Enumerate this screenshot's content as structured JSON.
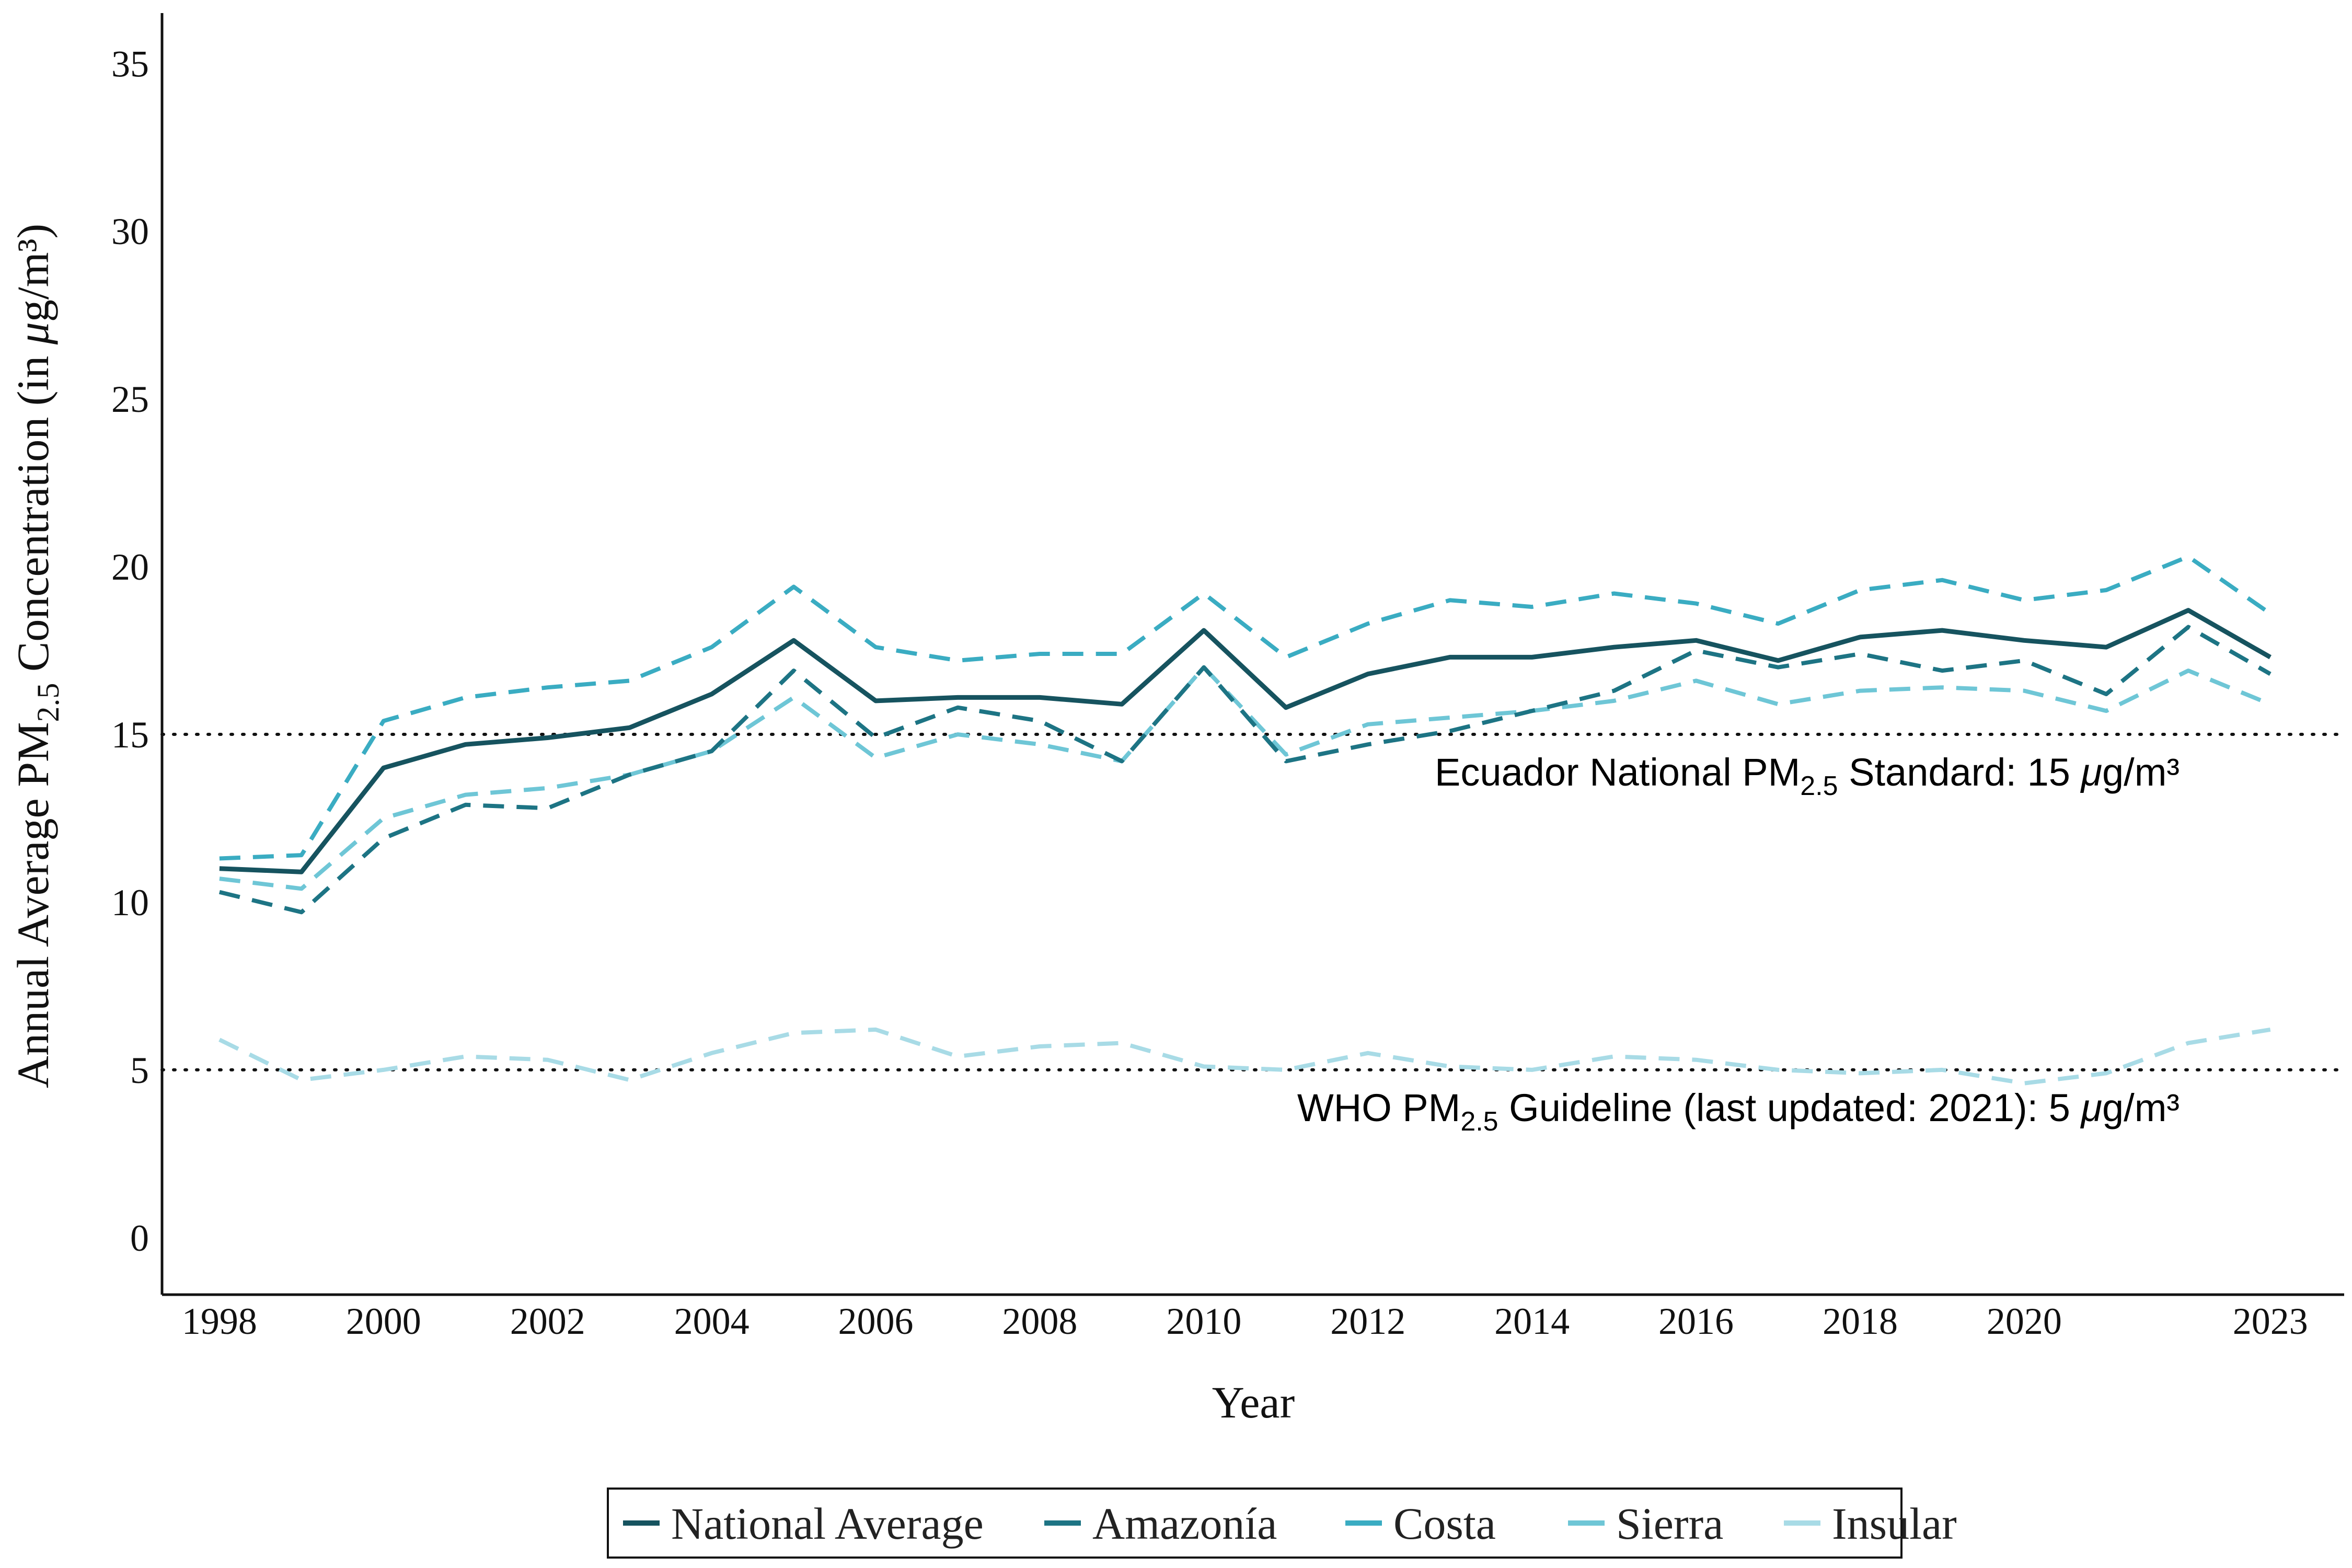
{
  "chart_data": {
    "type": "line",
    "xlabel": "Year",
    "ylabel": "Annual Average PM",
    "ylabel_sub": "2.5",
    "ylabel_tail": " Concentration (in ",
    "ylabel_mu": "μ",
    "ylabel_unit": "g/m³)",
    "x_ticks": [
      1998,
      2000,
      2002,
      2004,
      2006,
      2008,
      2010,
      2012,
      2014,
      2016,
      2018,
      2020,
      2023
    ],
    "x_tick_labels": [
      "1998",
      "2000",
      "2002",
      "2004",
      "2006",
      "2008",
      "2010",
      "2012",
      "2014",
      "2016",
      "2018",
      "2020",
      "2023"
    ],
    "y_ticks": [
      0,
      5,
      10,
      15,
      20,
      25,
      30,
      35
    ],
    "y_tick_labels": [
      "0",
      "5",
      "10",
      "15",
      "20",
      "25",
      "30",
      "35"
    ],
    "xlim": [
      1997.3,
      2023.9
    ],
    "ylim": [
      -1.7,
      36.5
    ],
    "grid": false,
    "legend_position": "bottom",
    "x": [
      1998,
      1999,
      2000,
      2001,
      2002,
      2003,
      2004,
      2005,
      2006,
      2007,
      2008,
      2009,
      2010,
      2011,
      2012,
      2013,
      2014,
      2015,
      2016,
      2017,
      2018,
      2019,
      2020,
      2021,
      2022,
      2023
    ],
    "series": [
      {
        "name": "National Average",
        "color": "#16535f",
        "dashed": false,
        "values": [
          11.0,
          10.9,
          14.0,
          14.7,
          14.9,
          15.2,
          16.2,
          17.8,
          16.0,
          16.1,
          16.1,
          15.9,
          18.1,
          15.8,
          16.8,
          17.3,
          17.3,
          17.6,
          17.8,
          17.2,
          17.9,
          18.1,
          17.8,
          17.6,
          18.7,
          17.3
        ]
      },
      {
        "name": "Amazonía",
        "color": "#1d7484",
        "dashed": true,
        "values": [
          10.3,
          9.7,
          11.9,
          12.9,
          12.8,
          13.8,
          14.5,
          16.9,
          14.9,
          15.8,
          15.4,
          14.2,
          17.0,
          14.2,
          14.7,
          15.1,
          15.7,
          16.3,
          17.5,
          17.0,
          17.4,
          16.9,
          17.2,
          16.2,
          18.2,
          16.8
        ]
      },
      {
        "name": "Costa",
        "color": "#3aacc2",
        "dashed": true,
        "values": [
          11.3,
          11.4,
          15.4,
          16.1,
          16.4,
          16.6,
          17.6,
          19.4,
          17.6,
          17.2,
          17.4,
          17.4,
          19.2,
          17.3,
          18.3,
          19.0,
          18.8,
          19.2,
          18.9,
          18.3,
          19.3,
          19.6,
          19.0,
          19.3,
          20.3,
          18.6
        ]
      },
      {
        "name": "Sierra",
        "color": "#6ec6d6",
        "dashed": true,
        "values": [
          10.7,
          10.4,
          12.5,
          13.2,
          13.4,
          13.8,
          14.5,
          16.1,
          14.3,
          15.0,
          14.7,
          14.2,
          17.0,
          14.4,
          15.3,
          15.5,
          15.7,
          16.0,
          16.6,
          15.9,
          16.3,
          16.4,
          16.3,
          15.7,
          16.9,
          15.9
        ]
      },
      {
        "name": "Insular",
        "color": "#a8dbe6",
        "dashed": true,
        "values": [
          5.9,
          4.7,
          5.0,
          5.4,
          5.3,
          4.7,
          5.5,
          6.1,
          6.2,
          5.4,
          5.7,
          5.8,
          5.1,
          5.0,
          5.5,
          5.1,
          5.0,
          5.4,
          5.3,
          5.0,
          4.9,
          5.0,
          4.6,
          4.9,
          5.8,
          6.2
        ]
      }
    ],
    "reference_lines": [
      {
        "value": 15,
        "label_pre": "Ecuador National PM",
        "label_sub": "2.5",
        "label_mid": " Standard: 15 ",
        "label_mu": "μ",
        "label_unit": "g/m³"
      },
      {
        "value": 5,
        "label_pre": "WHO PM",
        "label_sub": "2.5",
        "label_mid": " Guideline (last updated: 2021): 5 ",
        "label_mu": "μ",
        "label_unit": "g/m³"
      }
    ],
    "legend": [
      "National Average",
      "Amazonía",
      "Costa",
      "Sierra",
      "Insular"
    ]
  }
}
